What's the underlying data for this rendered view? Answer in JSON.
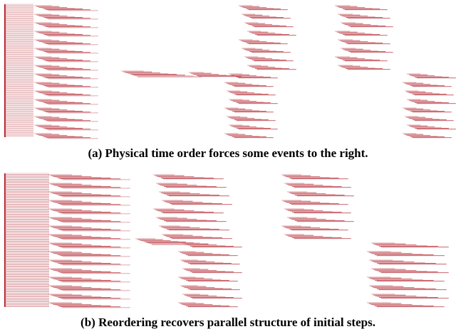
{
  "figure": {
    "colors": {
      "ink": "#b5323a",
      "ink_light": "#d68a8f",
      "axis": "#b21f28",
      "background": "#ffffff",
      "caption": "#000000"
    },
    "panels": [
      {
        "id": "a",
        "caption": "(a) Physical time order forces some events to the right.",
        "ordering": "physical-time"
      },
      {
        "id": "b",
        "caption": "(b) Reordering recovers parallel structure of initial steps.",
        "ordering": "reordered"
      }
    ]
  }
}
